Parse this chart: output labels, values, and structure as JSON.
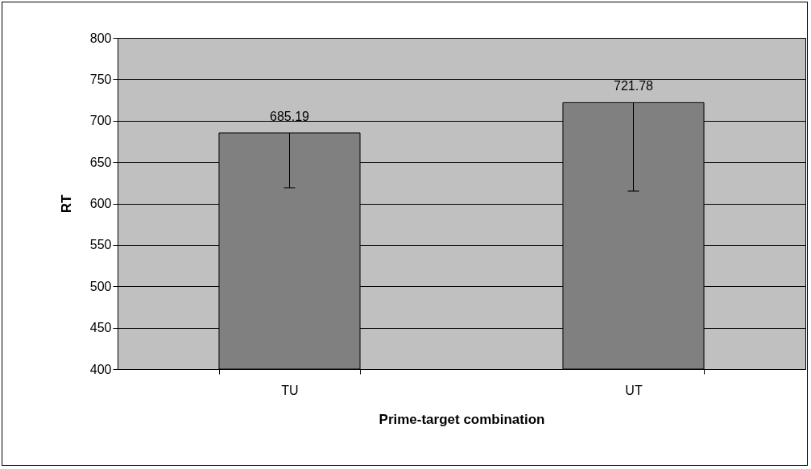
{
  "chart_data": {
    "type": "bar",
    "xlabel": "Prime-target combination",
    "ylabel": "RT",
    "categories": [
      "TU",
      "UT"
    ],
    "values": [
      685.19,
      721.78
    ],
    "color": "#808080",
    "errors": [
      [
        619,
        685.19
      ],
      [
        615,
        721.78
      ]
    ],
    "data_labels": true,
    "ylim": [
      400,
      800
    ],
    "yticks": [
      400,
      450,
      500,
      550,
      600,
      650,
      700,
      750,
      800
    ],
    "grid": "y"
  }
}
